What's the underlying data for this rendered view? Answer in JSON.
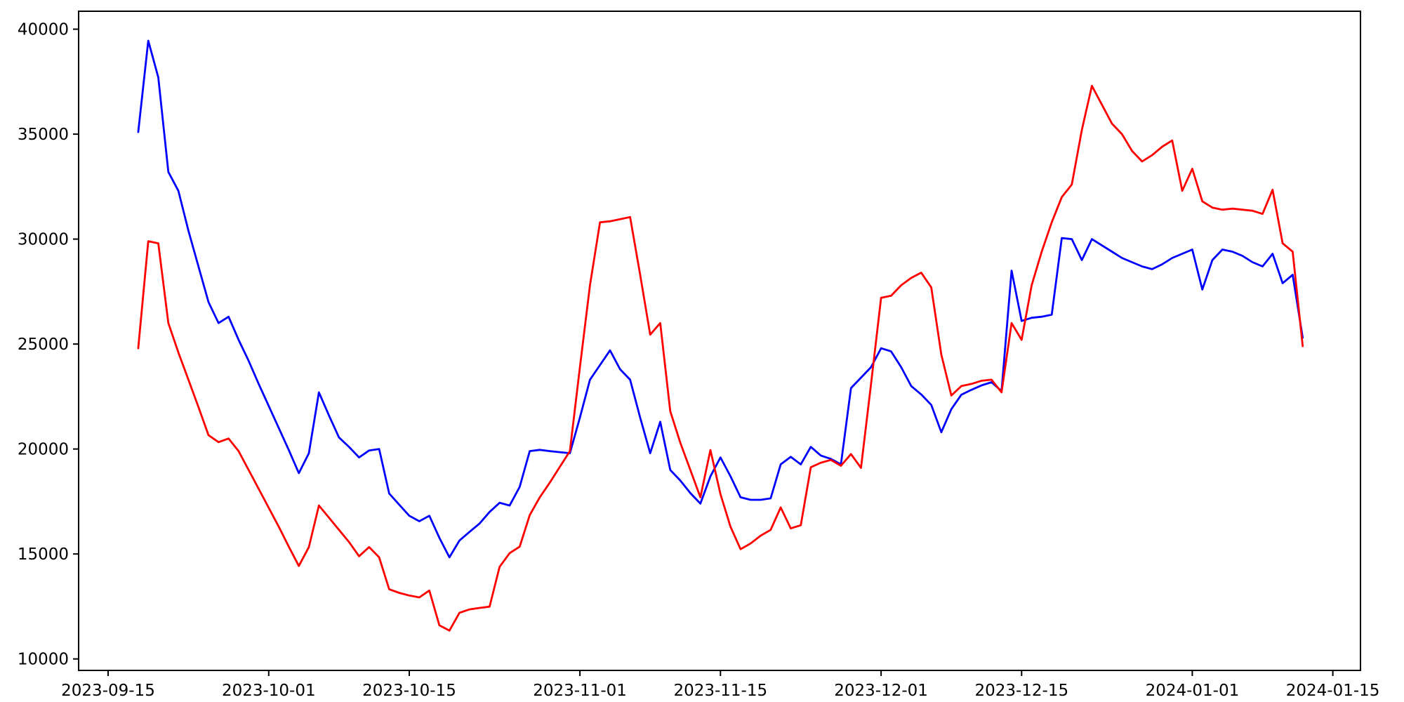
{
  "chart_data": {
    "type": "line",
    "title": "",
    "xlabel": "",
    "ylabel": "",
    "legend": "none",
    "grid": false,
    "background_color": "#ffffff",
    "spine_color": "#000000",
    "x_axis": {
      "tick_labels": [
        "2023-09-15",
        "2023-10-01",
        "2023-10-15",
        "2023-11-01",
        "2023-11-15",
        "2023-12-01",
        "2023-12-15",
        "2024-01-01",
        "2024-01-15"
      ],
      "xlim_dates": [
        "2023-09-12",
        "2024-01-18"
      ]
    },
    "y_axis": {
      "tick_labels": [
        "10000",
        "15000",
        "20000",
        "25000",
        "30000",
        "35000",
        "40000"
      ],
      "tick_values": [
        10000,
        15000,
        20000,
        25000,
        30000,
        35000,
        40000
      ],
      "ylim": [
        9945,
        40855
      ]
    },
    "series": [
      {
        "name": "blue-series",
        "color": "#0000ff",
        "start_date": "2023-09-18",
        "frequency": "daily",
        "values": [
          35100,
          39450,
          37700,
          33200,
          32300,
          30400,
          28700,
          27000,
          26000,
          26300,
          25200,
          24200,
          23100,
          22050,
          21000,
          19950,
          18850,
          19800,
          22700,
          21600,
          20550,
          20100,
          19600,
          19930,
          20000,
          17880,
          17350,
          16820,
          16560,
          16820,
          15770,
          14840,
          15640,
          16050,
          16450,
          17000,
          17440,
          17310,
          18200,
          19900,
          19960,
          19900,
          19850,
          19800,
          21500,
          23300,
          24000,
          24700,
          23800,
          23300,
          21500,
          19800,
          21300,
          19000,
          18500,
          17900,
          17400,
          18700,
          19600,
          18700,
          17700,
          17580,
          17580,
          17650,
          19270,
          19630,
          19270,
          20100,
          19690,
          19530,
          19270,
          22900,
          23400,
          23900,
          24800,
          24650,
          23900,
          23000,
          22600,
          22100,
          20800,
          21900,
          22590,
          22820,
          23030,
          23180,
          22760,
          28500,
          26100,
          26250,
          26300,
          26400,
          30050,
          30000,
          29000,
          30000,
          29700,
          29400,
          29100,
          28900,
          28700,
          28570,
          28800,
          29100,
          29300,
          29500,
          27600,
          29000,
          29500,
          29400,
          29200,
          28900,
          28700,
          29300,
          27900,
          28300,
          25300
        ]
      },
      {
        "name": "red-series",
        "color": "#ff0000",
        "start_date": "2023-09-18",
        "frequency": "daily",
        "values": [
          24800,
          29900,
          29800,
          26000,
          24600,
          23300,
          22000,
          20660,
          20330,
          20500,
          19900,
          19000,
          18100,
          17200,
          16300,
          15350,
          14430,
          15330,
          17310,
          16730,
          16150,
          15570,
          14890,
          15330,
          14840,
          13320,
          13150,
          13020,
          12930,
          13260,
          11600,
          11350,
          12200,
          12360,
          12430,
          12490,
          14390,
          15040,
          15350,
          16850,
          17700,
          18400,
          19150,
          19900,
          23900,
          27800,
          30800,
          30850,
          30950,
          31050,
          28300,
          25450,
          26000,
          21800,
          20300,
          19000,
          17700,
          19950,
          17850,
          16300,
          15230,
          15500,
          15870,
          16150,
          17220,
          16220,
          16370,
          19130,
          19350,
          19480,
          19200,
          19760,
          19100,
          23100,
          27200,
          27300,
          27800,
          28150,
          28400,
          27700,
          24500,
          22550,
          23000,
          23100,
          23250,
          23300,
          22700,
          26000,
          25200,
          27800,
          29400,
          30800,
          32000,
          32600,
          35200,
          37300,
          36400,
          35500,
          35000,
          34200,
          33700,
          34000,
          34400,
          34700,
          32300,
          33350,
          31800,
          31500,
          31400,
          31450,
          31400,
          31350,
          31200,
          32350,
          29800,
          29400,
          24900
        ]
      }
    ]
  }
}
